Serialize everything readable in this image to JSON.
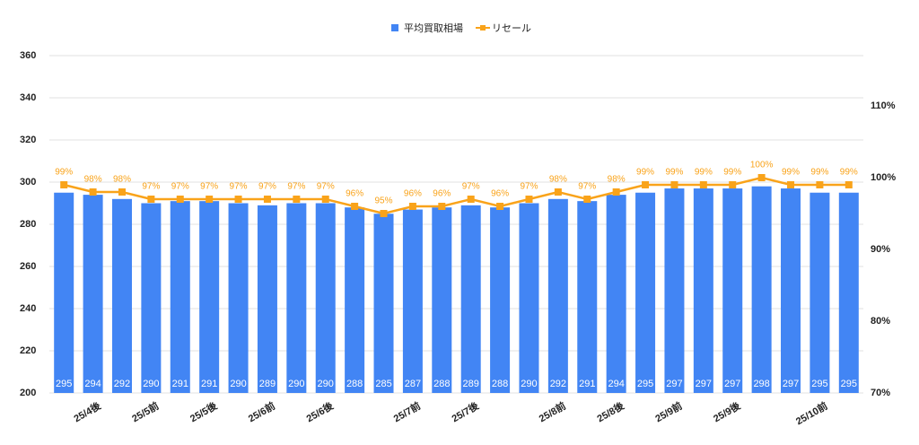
{
  "chart_data": {
    "type": "bar-line",
    "categories": [
      null,
      "25/4後",
      null,
      "25/5前",
      null,
      "25/5後",
      null,
      "25/6前",
      null,
      "25/6後",
      null,
      null,
      "25/7前",
      null,
      "25/7後",
      null,
      null,
      "25/8前",
      null,
      "25/8後",
      null,
      "25/9前",
      null,
      "25/9後",
      null,
      null,
      "25/10前",
      null
    ],
    "series": [
      {
        "name": "平均買取相場",
        "type": "bar",
        "color": "#4285f4",
        "values": [
          295,
          294,
          292,
          290,
          291,
          291,
          290,
          289,
          290,
          290,
          288,
          285,
          287,
          288,
          289,
          288,
          290,
          292,
          291,
          294,
          295,
          297,
          297,
          297,
          298,
          297,
          295,
          295
        ]
      },
      {
        "name": "リセール",
        "type": "line",
        "axis": "y2",
        "color": "#f9a31a",
        "values": [
          99,
          98,
          98,
          97,
          97,
          97,
          97,
          97,
          97,
          97,
          96,
          95,
          96,
          96,
          97,
          96,
          97,
          98,
          97,
          98,
          99,
          99,
          99,
          99,
          100,
          99,
          99,
          99
        ],
        "value_labels": [
          "99%",
          "98%",
          "98%",
          "97%",
          "97%",
          "97%",
          "97%",
          "97%",
          "97%",
          "97%",
          "96%",
          "95%",
          "96%",
          "96%",
          "97%",
          "96%",
          "97%",
          "98%",
          "97%",
          "98%",
          "99%",
          "99%",
          "99%",
          "99%",
          "100%",
          "99%",
          "99%",
          "99%"
        ]
      }
    ],
    "ylim": [
      200,
      360
    ],
    "yticks": [
      200,
      220,
      240,
      260,
      280,
      300,
      320,
      340,
      360
    ],
    "y2lim": [
      70,
      117
    ],
    "y2ticks": [
      {
        "value": 70,
        "label": "70%"
      },
      {
        "value": 80,
        "label": "80%"
      },
      {
        "value": 90,
        "label": "90%"
      },
      {
        "value": 100,
        "label": "100%"
      },
      {
        "value": 110,
        "label": "110%"
      }
    ],
    "grid": true,
    "legend": "top"
  }
}
